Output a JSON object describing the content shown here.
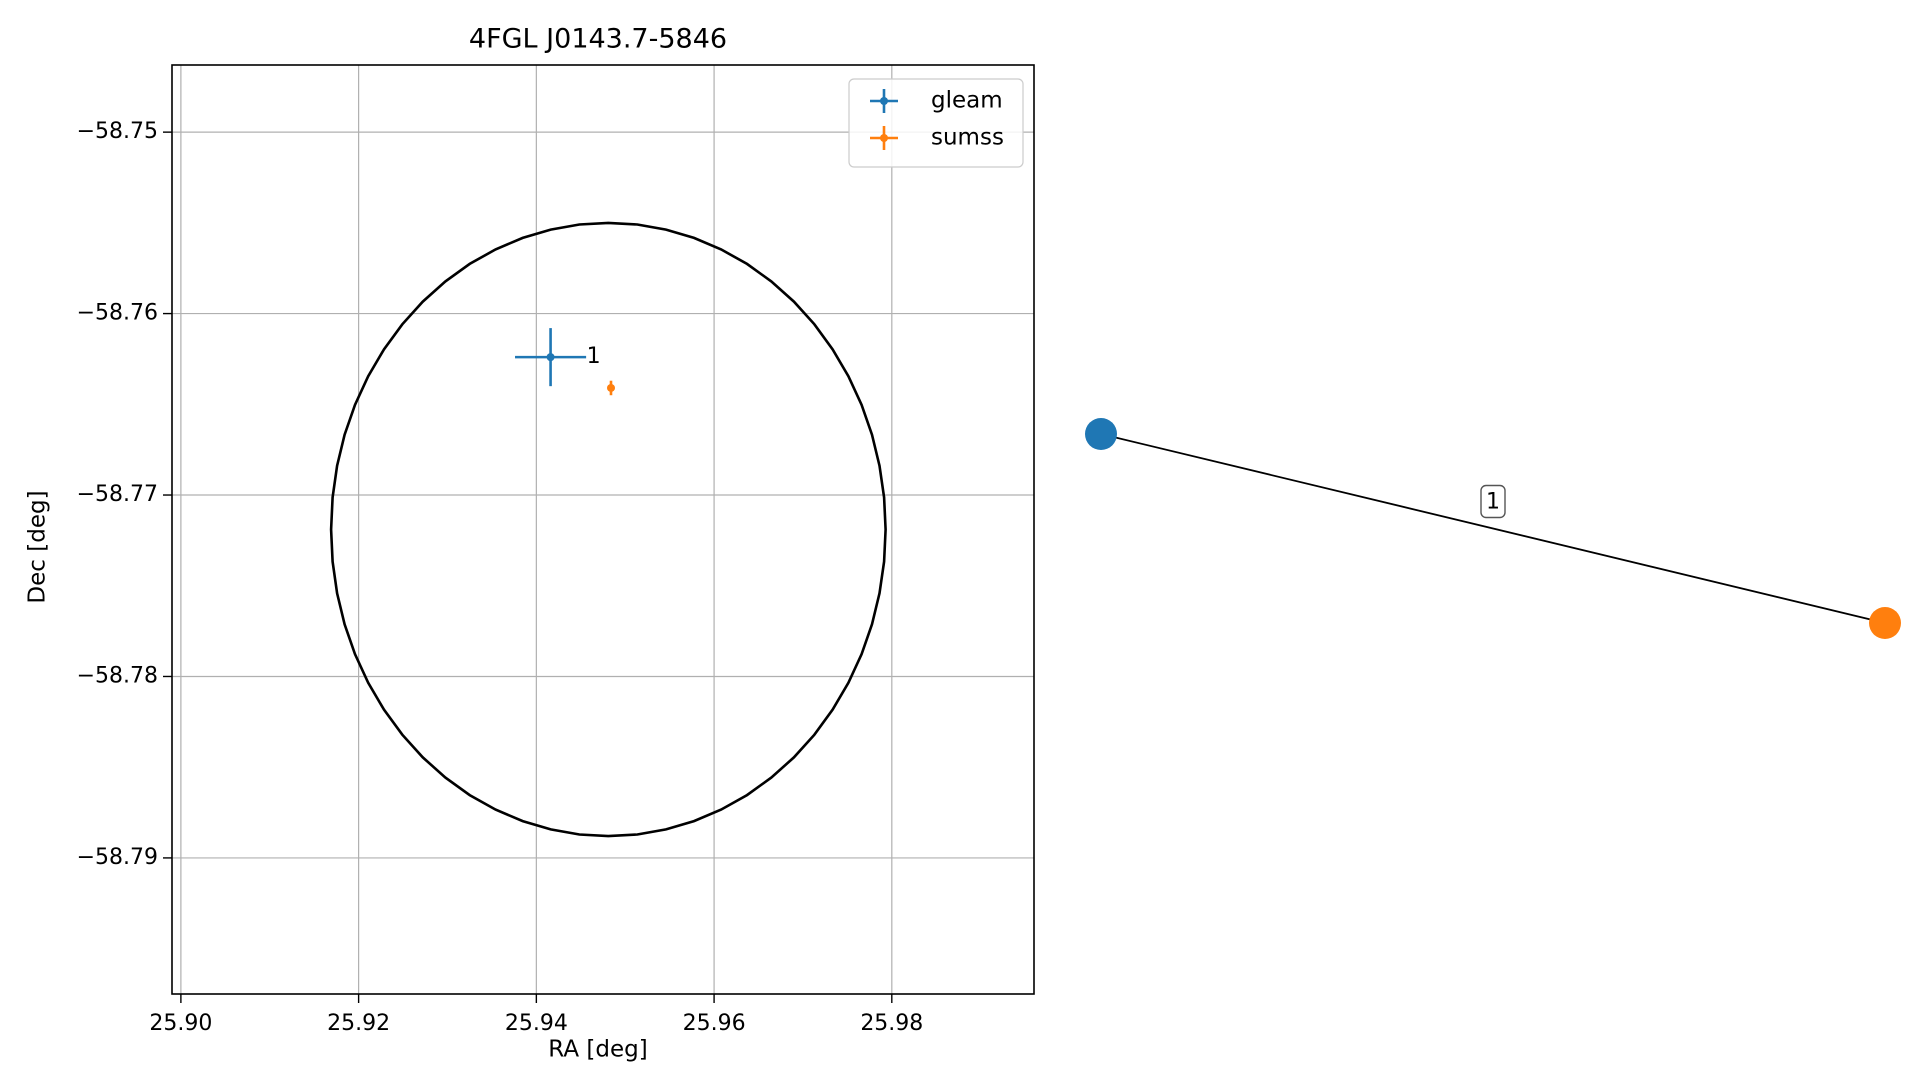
{
  "chart_data": [
    {
      "type": "scatter",
      "title": "4FGL J0143.7-5846",
      "xlabel": "RA [deg]",
      "ylabel": "Dec [deg]",
      "xlim": [
        25.899,
        25.996
      ],
      "ylim": [
        -58.7975,
        -58.7463
      ],
      "xticks": [
        25.9,
        25.92,
        25.94,
        25.96,
        25.98
      ],
      "xtick_labels": [
        "25.90",
        "25.92",
        "25.94",
        "25.96",
        "25.98"
      ],
      "yticks": [
        -58.75,
        -58.76,
        -58.77,
        -58.78,
        -58.79
      ],
      "ytick_labels": [
        "−58.75",
        "−58.76",
        "−58.77",
        "−58.78",
        "−58.79"
      ],
      "grid": true,
      "legend_position": "top-right",
      "series": [
        {
          "name": "gleam",
          "color": "#1f77b4",
          "points": [
            {
              "ra": 25.9416,
              "dec": -58.7624,
              "ra_err": 0.004,
              "dec_err": 0.0016,
              "label": "1"
            }
          ]
        },
        {
          "name": "sumss",
          "color": "#ff7f0e",
          "points": [
            {
              "ra": 25.9484,
              "dec": -58.7641,
              "ra_err": 0.0003,
              "dec_err": 0.0004
            }
          ]
        }
      ],
      "ellipse": {
        "center_ra": 25.9481,
        "center_dec": -58.7719,
        "semi_axis_ra": 0.0312,
        "semi_axis_dec": 0.0169,
        "color": "#000000"
      }
    },
    {
      "type": "network",
      "nodes": [
        {
          "id": "gleam",
          "color": "#1f77b4"
        },
        {
          "id": "sumss",
          "color": "#ff7f0e"
        }
      ],
      "edges": [
        {
          "source": "gleam",
          "target": "sumss",
          "label": "1"
        }
      ]
    }
  ]
}
